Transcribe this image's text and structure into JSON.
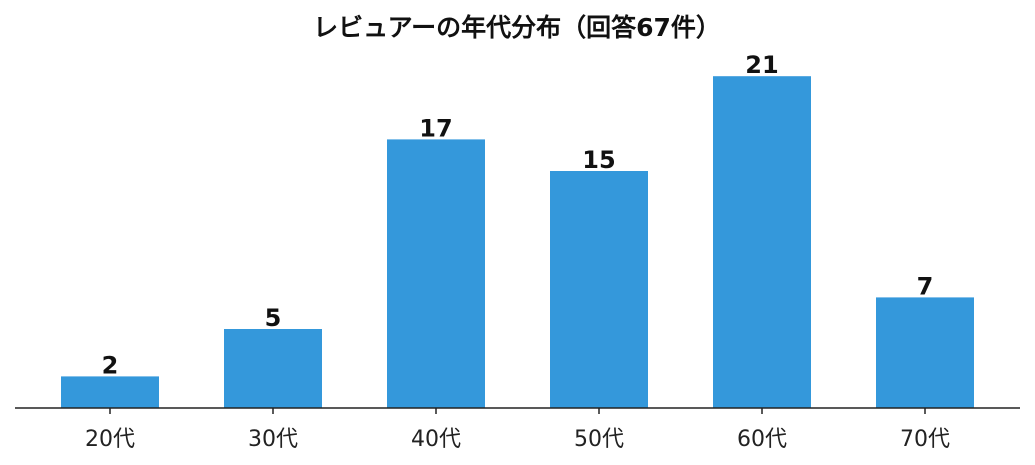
{
  "chart_data": {
    "type": "bar",
    "title": "レビュアーの年代分布（回答67件）",
    "xlabel": "",
    "ylabel": "",
    "categories": [
      "20代",
      "30代",
      "40代",
      "50代",
      "60代",
      "70代"
    ],
    "values": [
      2,
      5,
      17,
      15,
      21,
      7
    ],
    "ylim": [
      0,
      22.5
    ],
    "grid": false,
    "legend": "none",
    "bar_color": "#3498db",
    "axis_color": "#222222",
    "text_color": "#111111"
  }
}
